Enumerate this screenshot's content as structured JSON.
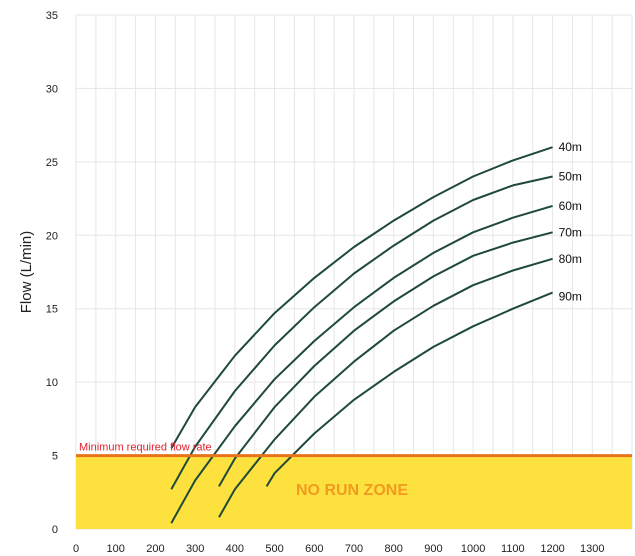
{
  "chart_data": {
    "type": "line",
    "title": "",
    "xlabel": "",
    "ylabel": "Flow (L/min)",
    "xlim": [
      0,
      1400
    ],
    "ylim": [
      0,
      35
    ],
    "x_ticks": [
      0,
      100,
      200,
      300,
      400,
      500,
      600,
      700,
      800,
      900,
      1000,
      1100,
      1200,
      1300
    ],
    "y_ticks": [
      0,
      5,
      10,
      15,
      20,
      25,
      30,
      35
    ],
    "grid": true,
    "legend": "none",
    "series": [
      {
        "name": "40m",
        "x": [
          240,
          300,
          400,
          500,
          600,
          700,
          800,
          900,
          1000,
          1100,
          1200
        ],
        "y": [
          5.5,
          8.3,
          11.8,
          14.7,
          17.1,
          19.2,
          21.0,
          22.6,
          24.0,
          25.1,
          26.0
        ]
      },
      {
        "name": "50m",
        "x": [
          240,
          300,
          400,
          500,
          600,
          700,
          800,
          900,
          1000,
          1100,
          1200
        ],
        "y": [
          2.7,
          5.6,
          9.4,
          12.5,
          15.1,
          17.4,
          19.3,
          21.0,
          22.4,
          23.4,
          24.0
        ]
      },
      {
        "name": "60m",
        "x": [
          240,
          300,
          400,
          500,
          600,
          700,
          800,
          900,
          1000,
          1100,
          1200
        ],
        "y": [
          0.4,
          3.3,
          7.0,
          10.2,
          12.8,
          15.1,
          17.1,
          18.8,
          20.2,
          21.2,
          22.0
        ]
      },
      {
        "name": "70m",
        "x": [
          360,
          400,
          500,
          600,
          700,
          800,
          900,
          1000,
          1100,
          1200
        ],
        "y": [
          2.9,
          4.8,
          8.3,
          11.1,
          13.5,
          15.5,
          17.2,
          18.6,
          19.5,
          20.2
        ]
      },
      {
        "name": "80m",
        "x": [
          360,
          400,
          500,
          600,
          700,
          800,
          900,
          1000,
          1100,
          1200
        ],
        "y": [
          0.8,
          2.7,
          6.1,
          9.0,
          11.4,
          13.5,
          15.2,
          16.6,
          17.6,
          18.4
        ]
      },
      {
        "name": "90m",
        "x": [
          480,
          500,
          600,
          700,
          800,
          900,
          1000,
          1100,
          1200
        ],
        "y": [
          2.9,
          3.8,
          6.5,
          8.8,
          10.7,
          12.4,
          13.8,
          15.0,
          16.1
        ]
      }
    ],
    "threshold": {
      "value": 5,
      "label": "Minimum required flow rate",
      "color": "#e8731a",
      "label_color": "#e0202c"
    },
    "zone": {
      "from": 0,
      "to": 5,
      "label": "NO RUN ZONE",
      "fill": "#fde23f",
      "label_color": "#f29a1f"
    },
    "line_color": "#1f4a3a"
  }
}
